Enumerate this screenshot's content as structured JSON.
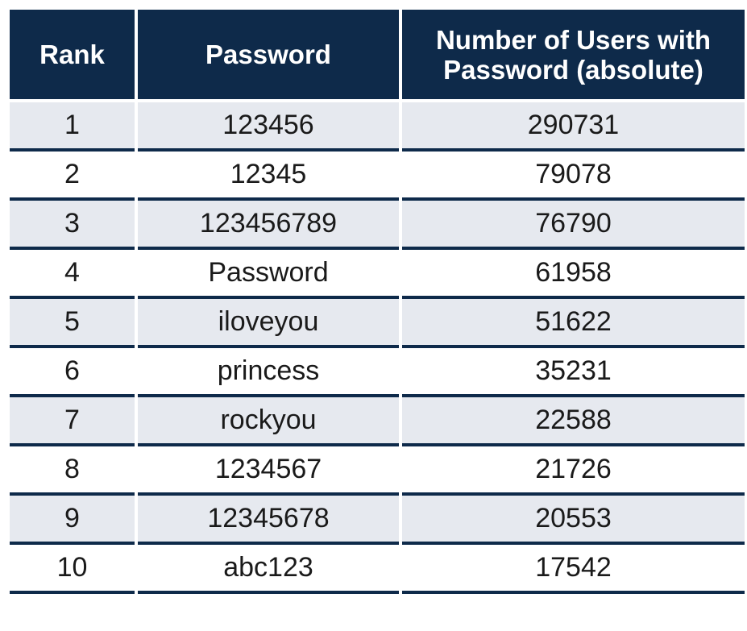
{
  "table": {
    "headers": {
      "rank": "Rank",
      "password": "Password",
      "users": "Number of Users with Password (absolute)"
    },
    "rows": [
      {
        "rank": "1",
        "password": "123456",
        "users": "290731"
      },
      {
        "rank": "2",
        "password": "12345",
        "users": "79078"
      },
      {
        "rank": "3",
        "password": "123456789",
        "users": "76790"
      },
      {
        "rank": "4",
        "password": "Password",
        "users": "61958"
      },
      {
        "rank": "5",
        "password": "iloveyou",
        "users": "51622"
      },
      {
        "rank": "6",
        "password": "princess",
        "users": "35231"
      },
      {
        "rank": "7",
        "password": "rockyou",
        "users": "22588"
      },
      {
        "rank": "8",
        "password": "1234567",
        "users": "21726"
      },
      {
        "rank": "9",
        "password": "12345678",
        "users": "20553"
      },
      {
        "rank": "10",
        "password": "abc123",
        "users": "17542"
      }
    ]
  },
  "colors": {
    "header_bg": "#0e2a4a",
    "stripe_bg": "#e6e9ef",
    "row_divider": "#0e2a4a"
  }
}
